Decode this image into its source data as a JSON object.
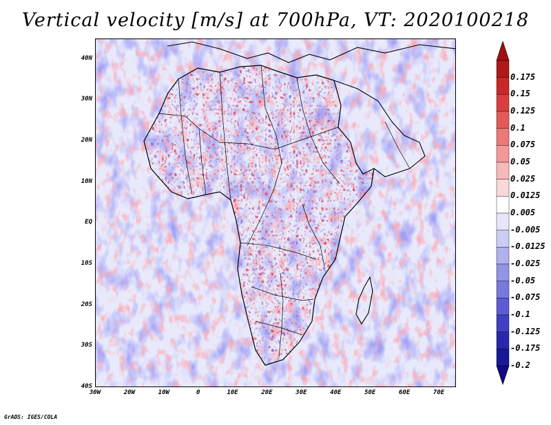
{
  "title": "Vertical velocity [m/s] at 700hPa, VT: 2020100218",
  "credit": "GrADS: IGES/COLA",
  "map": {
    "lat_range": [
      -40,
      45
    ],
    "lon_range": [
      -30,
      75
    ],
    "lat_labels": [
      "40N",
      "30N",
      "20N",
      "10N",
      "EQ",
      "10S",
      "20S",
      "30S",
      "40S"
    ],
    "lat_values": [
      40,
      30,
      20,
      10,
      0,
      -10,
      -20,
      -30,
      -40
    ],
    "lon_labels": [
      "30W",
      "20W",
      "10W",
      "0",
      "10E",
      "20E",
      "30E",
      "40E",
      "50E",
      "60E",
      "70E"
    ],
    "lon_values": [
      -30,
      -20,
      -10,
      0,
      10,
      20,
      30,
      40,
      50,
      60,
      70
    ]
  },
  "colorbar": {
    "labels": [
      "0.175",
      "0.15",
      "0.125",
      "0.1",
      "0.075",
      "0.05",
      "0.025",
      "0.0125",
      "0.005",
      "-0.005",
      "-0.0125",
      "-0.025",
      "-0.05",
      "-0.075",
      "-0.1",
      "-0.125",
      "-0.175",
      "-0.2"
    ],
    "colors": [
      "#b01818",
      "#c82828",
      "#d84040",
      "#e45a5a",
      "#ec7878",
      "#f29898",
      "#f7b8b8",
      "#fbd8d8",
      "#ffffff",
      "#e6e6fb",
      "#ccccf4",
      "#b0b0ee",
      "#9494e6",
      "#7878de",
      "#5c5cd2",
      "#4040c4",
      "#2828ae",
      "#181898"
    ],
    "top_arrow_color": "#a01010",
    "bottom_arrow_color": "#100c80"
  }
}
